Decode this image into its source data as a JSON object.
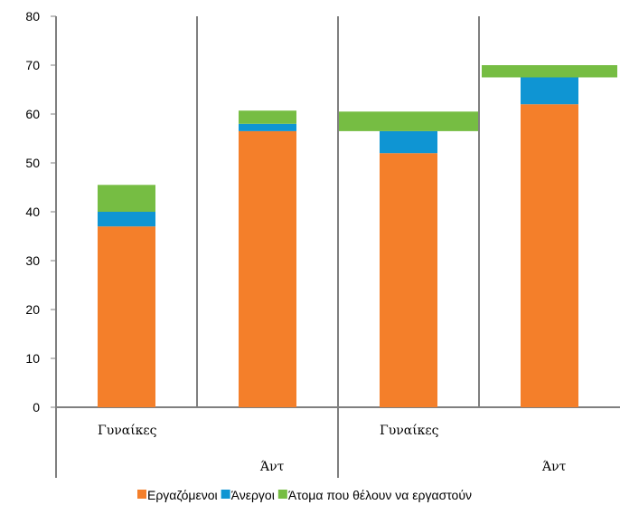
{
  "chart_data": {
    "type": "bar",
    "stacked": true,
    "categories": [
      {
        "label": "Γυναίκες",
        "group": 0
      },
      {
        "label": "Άντ",
        "group": 0
      },
      {
        "label": "Γυναίκες",
        "group": 1
      },
      {
        "label": "Άντ",
        "group": 1
      }
    ],
    "series": [
      {
        "name": "Εργαζόμενοι",
        "color": "#f47f2a",
        "values": [
          37,
          56.5,
          52,
          62
        ]
      },
      {
        "name": "Άνεργοι",
        "color": "#0f95d3",
        "values": [
          3,
          1.5,
          4.5,
          5.5
        ]
      },
      {
        "name": "Άτομα που θέλουν να εργαστούν",
        "color": "#76bd43",
        "values": [
          5.5,
          2.7,
          4,
          2.5
        ]
      }
    ],
    "title": "",
    "xlabel": "",
    "ylabel": "",
    "ylim": [
      0,
      80
    ],
    "yticks": [
      0,
      10,
      20,
      30,
      40,
      50,
      60,
      70,
      80
    ],
    "grid": false,
    "legend": "bottom"
  }
}
